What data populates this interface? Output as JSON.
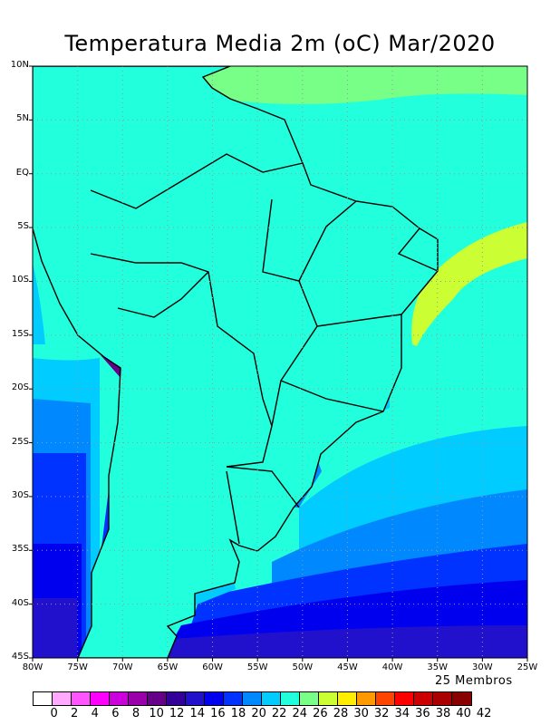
{
  "title": "Temperatura Media 2m (oC) Mar/2020",
  "members_label": "25 Membros",
  "y_ticks": [
    "10N",
    "5N",
    "EQ",
    "5S",
    "10S",
    "15S",
    "20S",
    "25S",
    "30S",
    "35S",
    "40S",
    "45S"
  ],
  "x_ticks": [
    "80W",
    "75W",
    "70W",
    "65W",
    "60W",
    "55W",
    "50W",
    "45W",
    "40W",
    "35W",
    "30W",
    "25W"
  ],
  "colorbar": {
    "labels": [
      "0",
      "2",
      "4",
      "6",
      "8",
      "10",
      "12",
      "14",
      "16",
      "18",
      "20",
      "22",
      "24",
      "26",
      "28",
      "30",
      "32",
      "34",
      "36",
      "38",
      "40",
      "42"
    ],
    "colors": [
      "#ffffff",
      "#ffaaff",
      "#ff55ff",
      "#ff00ff",
      "#cc00dd",
      "#9900aa",
      "#660088",
      "#330099",
      "#2211cc",
      "#0000ee",
      "#0033ff",
      "#0088ff",
      "#00ccff",
      "#22ffdd",
      "#77ff88",
      "#ccff33",
      "#ffee00",
      "#ff9900",
      "#ff4400",
      "#ff0000",
      "#cc0000",
      "#aa0000",
      "#880000"
    ]
  }
}
